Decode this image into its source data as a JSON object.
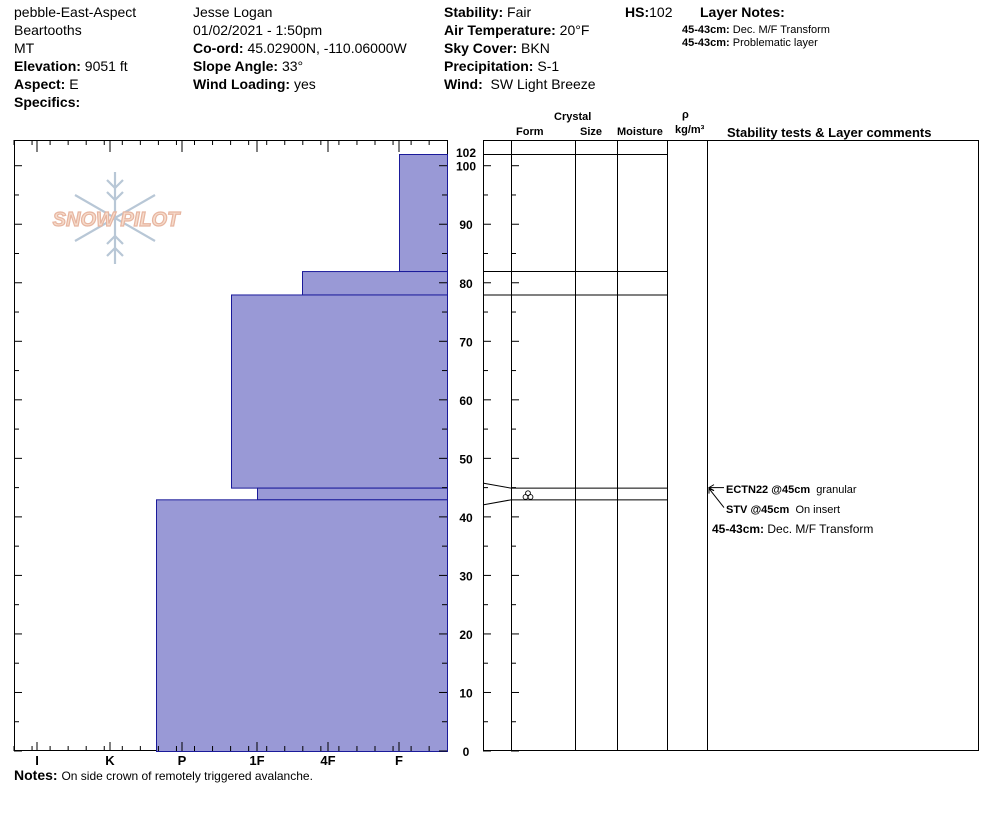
{
  "header": {
    "col1": {
      "location": "pebble-East-Aspect",
      "range": "Beartooths",
      "state": "MT",
      "elevation_label": "Elevation:",
      "elevation_value": "9051 ft",
      "aspect_label": "Aspect:",
      "aspect_value": "E",
      "specifics_label": "Specifics:"
    },
    "col2": {
      "observer": "Jesse Logan",
      "datetime": "01/02/2021 - 1:50pm",
      "coord_label": "Co-ord:",
      "coord_value": "45.02900N, -110.06000W",
      "slope_label": "Slope Angle:",
      "slope_value": "33°",
      "wind_loading_label": "Wind Loading:",
      "wind_loading_value": "yes"
    },
    "col3": {
      "stability_label": "Stability:",
      "stability_value": "Fair",
      "air_temp_label": "Air Temperature:",
      "air_temp_value": "20°F",
      "sky_label": "Sky Cover:",
      "sky_value": "BKN",
      "precip_label": "Precipitation:",
      "precip_value": "S-1",
      "wind_label": "Wind:",
      "wind_value": "SW Light Breeze"
    },
    "hs_label": "HS:",
    "hs_value": "102",
    "layer_notes": {
      "title": "Layer Notes:",
      "items": [
        {
          "range": "45-43cm:",
          "text": "Dec. M/F Transform"
        },
        {
          "range": "45-43cm:",
          "text": "Problematic layer"
        }
      ]
    }
  },
  "logo_text": "SNOW PILOT",
  "columns": {
    "crystal": "Crystal",
    "form": "Form",
    "size": "Size",
    "moisture": "Moisture",
    "rho": "ρ",
    "density_unit": "kg/m³",
    "stability": "Stability tests & Layer comments"
  },
  "chart_data": {
    "type": "bar",
    "subtype": "snow-hardness-profile",
    "y_axis": {
      "range": [
        0,
        102
      ],
      "ticks": [
        0,
        10,
        20,
        30,
        40,
        50,
        60,
        70,
        80,
        90,
        100
      ],
      "top_label": "102"
    },
    "x_axis": {
      "categories": [
        "I",
        "K",
        "P",
        "1F",
        "4F",
        "F"
      ]
    },
    "layers": [
      {
        "top": 102,
        "bottom": 82,
        "hardness": "F"
      },
      {
        "top": 82,
        "bottom": 78,
        "hardness": "4F-"
      },
      {
        "top": 78,
        "bottom": 45,
        "hardness": "1F-"
      },
      {
        "top": 45,
        "bottom": 43,
        "hardness": "1F"
      },
      {
        "top": 43,
        "bottom": 0,
        "hardness": "P-"
      }
    ],
    "fill_color": "#9999d6",
    "stroke_color": "#1a1a9a",
    "layer_boundaries": [
      102,
      82,
      78,
      45,
      43
    ],
    "form_symbols": [
      {
        "depth": 44,
        "symbol": "decomposed-melt-freeze"
      }
    ]
  },
  "stability_tests": [
    {
      "depth": 45,
      "code": "ECTN22 @45cm",
      "comment": "granular"
    },
    {
      "depth": 45,
      "code": "STV @45cm",
      "comment": "On insert"
    }
  ],
  "layer_comment": {
    "range": "45-43cm:",
    "text": "Dec. M/F Transform"
  },
  "notes": {
    "label": "Notes:",
    "text": "On side crown of remotely triggered avalanche."
  }
}
